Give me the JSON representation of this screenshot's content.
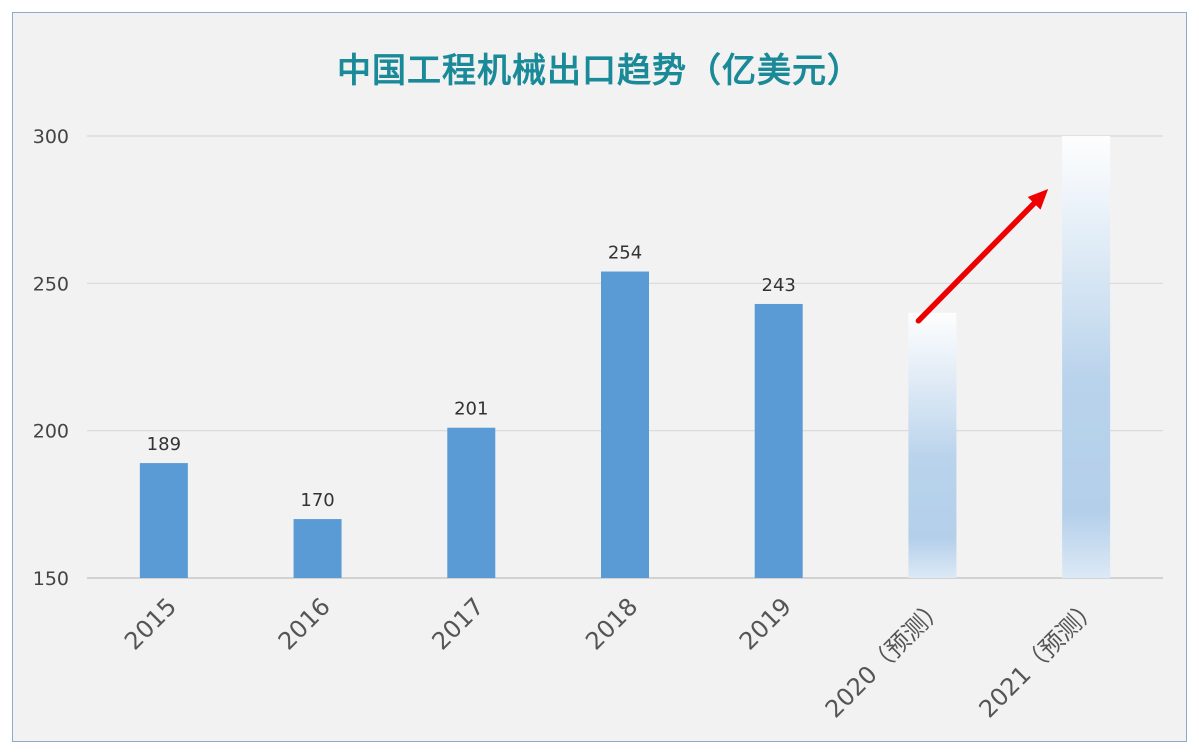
{
  "chart_data": {
    "type": "bar",
    "title": "中国工程机械出口趋势（亿美元）",
    "xlabel": "",
    "ylabel": "",
    "categories": [
      "2015",
      "2016",
      "2017",
      "2018",
      "2019",
      "2020（预测）",
      "2021（预测）"
    ],
    "values": [
      189,
      170,
      201,
      254,
      243,
      240,
      300
    ],
    "data_labels": [
      "189",
      "170",
      "201",
      "254",
      "243",
      "",
      ""
    ],
    "forecast": [
      false,
      false,
      false,
      false,
      false,
      true,
      true
    ],
    "ylim": [
      150,
      300
    ],
    "yticks": [
      "150",
      "200",
      "250",
      "300"
    ],
    "grid": true,
    "legend": "none",
    "annotation": "red-arrow-upward-trend",
    "colors": {
      "bar": "#5b9bd5",
      "forecast_bar": "#b4cfea",
      "title": "#1a8a99",
      "arrow": "#ee0000",
      "grid": "#d9d9d9"
    }
  }
}
